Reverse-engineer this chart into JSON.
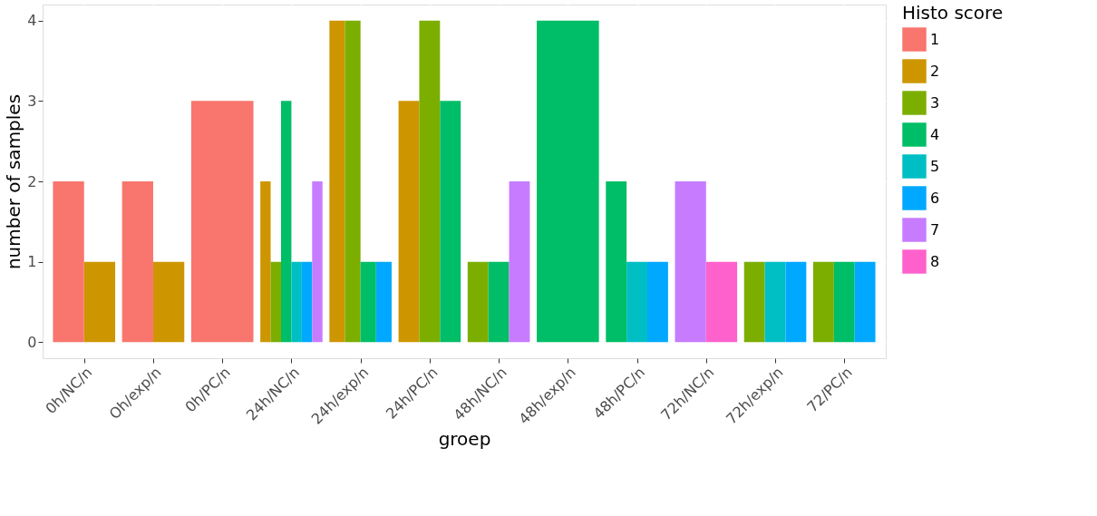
{
  "chart_data": {
    "type": "bar",
    "xlabel": "groep",
    "ylabel": "number of samples",
    "legend_title": "Histo score",
    "categories": [
      "0h/NC/n",
      "Oh/exp/n",
      "0h/PC/n",
      "24h/NC/n",
      "24h/exp/n",
      "24h/PC/n",
      "48h/NC/n",
      "48h/exp/n",
      "48h/PC/n",
      "72h/NC/n",
      "72h/exp/n",
      "72/PC/n"
    ],
    "series": [
      {
        "name": "1",
        "color": "#f8766d",
        "values": [
          2,
          2,
          3,
          null,
          null,
          null,
          null,
          null,
          null,
          null,
          null,
          null
        ]
      },
      {
        "name": "2",
        "color": "#cd9600",
        "values": [
          1,
          1,
          null,
          2,
          4,
          3,
          null,
          null,
          null,
          null,
          null,
          null
        ]
      },
      {
        "name": "3",
        "color": "#7cae00",
        "values": [
          null,
          null,
          null,
          1,
          4,
          4,
          1,
          null,
          null,
          null,
          1,
          1
        ]
      },
      {
        "name": "4",
        "color": "#00be67",
        "values": [
          null,
          null,
          null,
          3,
          1,
          3,
          1,
          4,
          2,
          null,
          null,
          1
        ]
      },
      {
        "name": "5",
        "color": "#00bfc4",
        "values": [
          null,
          null,
          null,
          1,
          null,
          null,
          null,
          null,
          1,
          null,
          1,
          null
        ]
      },
      {
        "name": "6",
        "color": "#00a9ff",
        "values": [
          null,
          null,
          null,
          1,
          1,
          null,
          null,
          null,
          1,
          null,
          1,
          1
        ]
      },
      {
        "name": "7",
        "color": "#c77cff",
        "values": [
          null,
          null,
          null,
          2,
          null,
          null,
          2,
          null,
          null,
          2,
          null,
          null
        ]
      },
      {
        "name": "8",
        "color": "#ff61cc",
        "values": [
          null,
          null,
          null,
          null,
          null,
          null,
          null,
          null,
          null,
          1,
          null,
          null
        ]
      }
    ],
    "ylim": [
      -0.2,
      4.2
    ],
    "yticks": [
      0,
      1,
      2,
      3,
      4
    ],
    "grid": true,
    "legend": "right"
  }
}
